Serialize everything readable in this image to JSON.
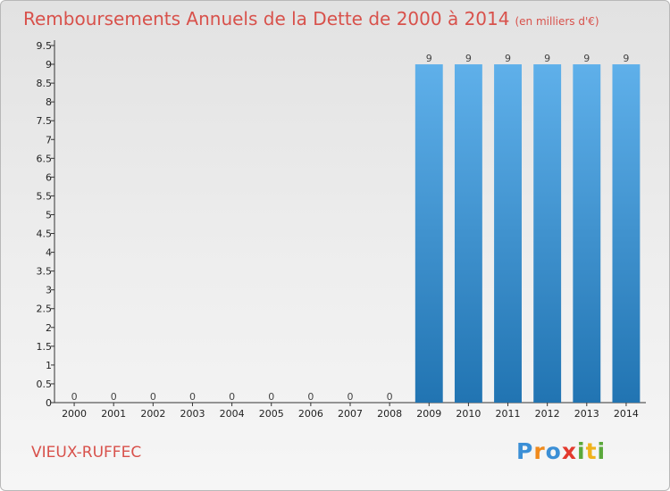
{
  "chart_data": {
    "type": "bar",
    "title": "Remboursements Annuels de la Dette de 2000 à 2014",
    "subtitle": "(en milliers d'€)",
    "categories": [
      "2000",
      "2001",
      "2002",
      "2003",
      "2004",
      "2005",
      "2006",
      "2007",
      "2008",
      "2009",
      "2010",
      "2011",
      "2012",
      "2013",
      "2014"
    ],
    "values": [
      0,
      0,
      0,
      0,
      0,
      0,
      0,
      0,
      0,
      9,
      9,
      9,
      9,
      9,
      9
    ],
    "data_labels": [
      "0",
      "0",
      "0",
      "0",
      "0",
      "0",
      "0",
      "0",
      "0",
      "9",
      "9",
      "9",
      "9",
      "9",
      "9"
    ],
    "xlabel": "",
    "ylabel": "",
    "ylim": [
      0,
      9.5
    ],
    "y_ticks": [
      0,
      0.5,
      1,
      1.5,
      2,
      2.5,
      3,
      3.5,
      4,
      4.5,
      5,
      5.5,
      6,
      6.5,
      7,
      7.5,
      8,
      8.5,
      9,
      9.5
    ],
    "y_tick_labels": [
      "0",
      "0.5",
      "1",
      "1.5",
      "2",
      "2.5",
      "3",
      "3.5",
      "4",
      "4.5",
      "5",
      "5.5",
      "6",
      "6.5",
      "7",
      "7.5",
      "8",
      "8.5",
      "9",
      "9.5"
    ],
    "grid": false,
    "colors": {
      "bar_top": "#5fb0ea",
      "bar_bottom": "#2174b2",
      "title": "#d8514b"
    }
  },
  "footer": {
    "town": "VIEUX-RUFFEC",
    "logo_letters": [
      "P",
      "r",
      "o",
      "x",
      "i",
      "t",
      "i"
    ],
    "logo_colors": [
      "#3b8fd6",
      "#f08a1c",
      "#3b8fd6",
      "#e33a2e",
      "#5aa83b",
      "#f0b21c",
      "#5aa83b"
    ]
  }
}
